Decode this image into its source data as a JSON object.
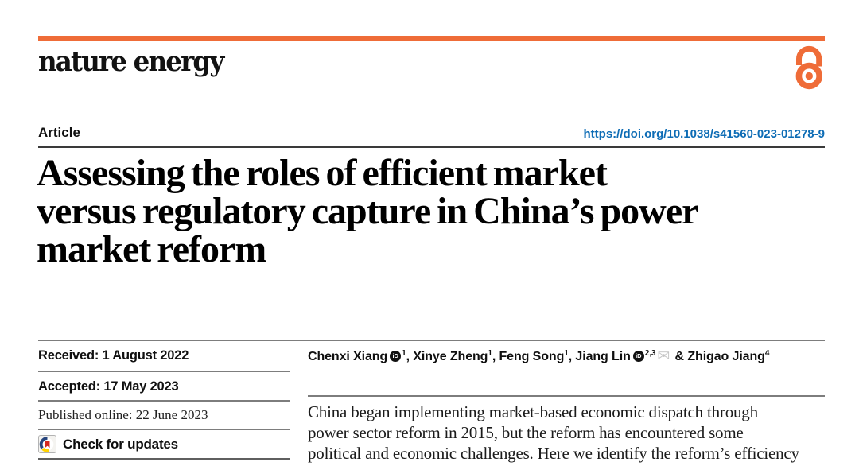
{
  "colors": {
    "accent": "#ef6c38",
    "link_blue": "#0d6cb5",
    "rule_dark": "#3a3a3a",
    "rule_gray": "#7d7d7d"
  },
  "header": {
    "brand": "nature energy",
    "open_access_icon": "open-padlock",
    "article_type": "Article",
    "doi": "https://doi.org/10.1038/s41560-023-01278-9"
  },
  "title": {
    "lines": [
      "Assessing the roles of efficient market",
      "versus regulatory capture in China’s power",
      "market reform"
    ]
  },
  "dates": {
    "received": "Received: 1 August 2022",
    "accepted": "Accepted: 17 May 2023",
    "published_online": "Published online: 22 June 2023",
    "check_updates_label": "Check for updates",
    "crossmark_icon": "crossmark"
  },
  "authors": {
    "segments": [
      {
        "text": "Chenxi Xiang"
      },
      {
        "icon": "orcid"
      },
      {
        "sup": "1"
      },
      {
        "text": ", Xinye Zheng"
      },
      {
        "sup": "1"
      },
      {
        "text": ", Feng Song"
      },
      {
        "sup": "1"
      },
      {
        "text": ", Jiang Lin"
      },
      {
        "icon": "orcid"
      },
      {
        "sup": "2,3"
      },
      {
        "icon": "email"
      },
      {
        "text": " & Zhigao Jiang"
      },
      {
        "sup": "4"
      }
    ]
  },
  "abstract": {
    "lines": [
      "China began implementing market-based economic dispatch through",
      "power sector reform in 2015, but the reform has encountered some",
      "political and economic challenges. Here we identify the reform’s efficiency"
    ]
  }
}
